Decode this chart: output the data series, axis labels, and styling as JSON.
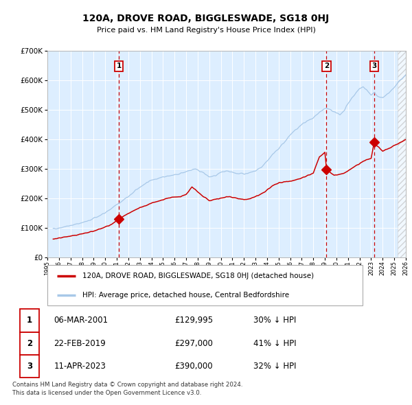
{
  "title": "120A, DROVE ROAD, BIGGLESWADE, SG18 0HJ",
  "subtitle": "Price paid vs. HM Land Registry's House Price Index (HPI)",
  "ylim": [
    0,
    700000
  ],
  "yticks": [
    0,
    100000,
    200000,
    300000,
    400000,
    500000,
    600000,
    700000
  ],
  "ytick_labels": [
    "£0",
    "£100K",
    "£200K",
    "£300K",
    "£400K",
    "£500K",
    "£600K",
    "£700K"
  ],
  "hpi_color": "#a8c8e8",
  "price_color": "#cc0000",
  "vline_color": "#cc0000",
  "background_color": "#ddeeff",
  "grid_color": "#ffffff",
  "sale_dates": [
    2001.18,
    2019.14,
    2023.27
  ],
  "sale_prices": [
    129995,
    297000,
    390000
  ],
  "sale_labels": [
    "1",
    "2",
    "3"
  ],
  "legend_price_label": "120A, DROVE ROAD, BIGGLESWADE, SG18 0HJ (detached house)",
  "legend_hpi_label": "HPI: Average price, detached house, Central Bedfordshire",
  "table_rows": [
    [
      "1",
      "06-MAR-2001",
      "£129,995",
      "30% ↓ HPI"
    ],
    [
      "2",
      "22-FEB-2019",
      "£297,000",
      "41% ↓ HPI"
    ],
    [
      "3",
      "11-APR-2023",
      "£390,000",
      "32% ↓ HPI"
    ]
  ],
  "footnote": "Contains HM Land Registry data © Crown copyright and database right 2024.\nThis data is licensed under the Open Government Licence v3.0.",
  "xstart": 1995.5,
  "xend": 2026.0
}
